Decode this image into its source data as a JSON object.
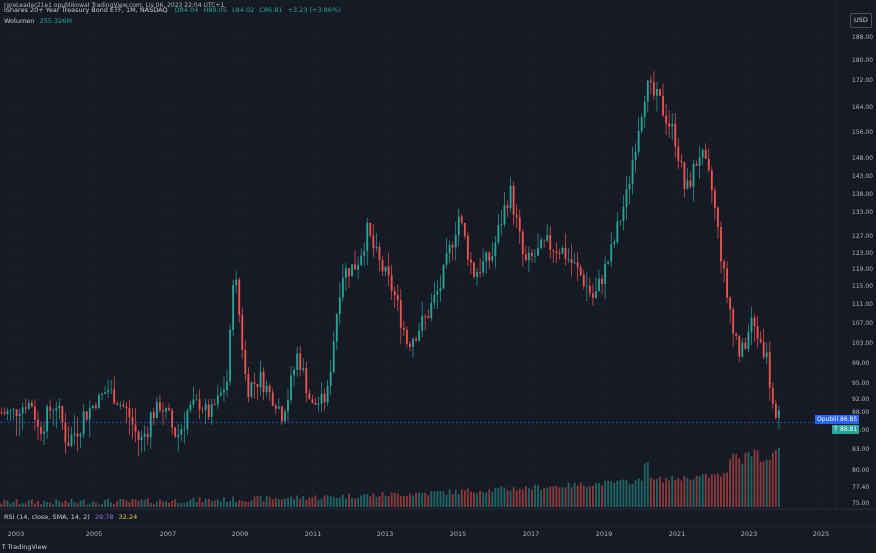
{
  "header": {
    "author_line": "rareLeader21e1 opublikował TradingView.com, Lis 06, 2023 22:04 UTC+1",
    "symbol": "iShares 20+ Year Treasury Bond ETF, 1M, NASDAQ",
    "o": "O84.04",
    "h": "H89.05",
    "l": "L84.02",
    "c": "C86.81",
    "chg": "+3.23 (+3.86%)",
    "volume_label": "Wolumen",
    "volume_value": "255.326M",
    "currency": "USD"
  },
  "rsi": {
    "label": "RSI (14, close, SMA, 14, 2)",
    "v1": "29.78",
    "v2": "32.24"
  },
  "footer": {
    "logo": "TradingView"
  },
  "tags": {
    "author": "Opublikuj",
    "author_value": "86.85",
    "symbol": "TLT",
    "symbol_value": "86.81"
  },
  "colors": {
    "up": "#26a69a",
    "down": "#ef5350",
    "bg": "#161a25",
    "grid": "#20242f",
    "text": "#b2b5be"
  },
  "chart_data": {
    "type": "candlestick",
    "title": "iShares 20+ Year Treasury Bond ETF, 1M, NASDAQ",
    "x_ticks": [
      "2003",
      "2005",
      "2007",
      "2009",
      "2011",
      "2013",
      "2015",
      "2017",
      "2019",
      "2021",
      "2023",
      "2025"
    ],
    "y_ticks": [
      75.0,
      77.4,
      80.0,
      83.0,
      86.0,
      88.0,
      92.0,
      95.0,
      99.0,
      103.0,
      107.0,
      111.0,
      115.0,
      119.0,
      123.0,
      127.0,
      133.0,
      138.0,
      143.0,
      148.0,
      156.0,
      164.0,
      172.0,
      180.0,
      188.0
    ],
    "ylim": [
      75,
      190
    ],
    "last_price": 86.81,
    "grid": true,
    "series_points": [
      {
        "t": 2002.9,
        "p": 88
      },
      {
        "t": 2003.4,
        "p": 91
      },
      {
        "t": 2003.6,
        "p": 86
      },
      {
        "t": 2004.1,
        "p": 90
      },
      {
        "t": 2004.4,
        "p": 84
      },
      {
        "t": 2004.9,
        "p": 88
      },
      {
        "t": 2005.5,
        "p": 94
      },
      {
        "t": 2005.9,
        "p": 90
      },
      {
        "t": 2006.4,
        "p": 84
      },
      {
        "t": 2006.9,
        "p": 90
      },
      {
        "t": 2007.4,
        "p": 85
      },
      {
        "t": 2007.9,
        "p": 91
      },
      {
        "t": 2008.3,
        "p": 88
      },
      {
        "t": 2008.8,
        "p": 96
      },
      {
        "t": 2008.95,
        "p": 120
      },
      {
        "t": 2009.3,
        "p": 94
      },
      {
        "t": 2009.7,
        "p": 96
      },
      {
        "t": 2010.3,
        "p": 88
      },
      {
        "t": 2010.7,
        "p": 101
      },
      {
        "t": 2011.1,
        "p": 90
      },
      {
        "t": 2011.5,
        "p": 92
      },
      {
        "t": 2011.9,
        "p": 118
      },
      {
        "t": 2012.3,
        "p": 120
      },
      {
        "t": 2012.6,
        "p": 128
      },
      {
        "t": 2012.9,
        "p": 121
      },
      {
        "t": 2013.3,
        "p": 114
      },
      {
        "t": 2013.7,
        "p": 103
      },
      {
        "t": 2014.2,
        "p": 108
      },
      {
        "t": 2014.6,
        "p": 115
      },
      {
        "t": 2015.1,
        "p": 132
      },
      {
        "t": 2015.5,
        "p": 118
      },
      {
        "t": 2016.0,
        "p": 122
      },
      {
        "t": 2016.5,
        "p": 139
      },
      {
        "t": 2016.9,
        "p": 120
      },
      {
        "t": 2017.5,
        "p": 125
      },
      {
        "t": 2017.9,
        "p": 124
      },
      {
        "t": 2018.4,
        "p": 118
      },
      {
        "t": 2018.8,
        "p": 112
      },
      {
        "t": 2019.3,
        "p": 124
      },
      {
        "t": 2019.7,
        "p": 138
      },
      {
        "t": 2020.2,
        "p": 170
      },
      {
        "t": 2020.6,
        "p": 165
      },
      {
        "t": 2021.0,
        "p": 155
      },
      {
        "t": 2021.3,
        "p": 138
      },
      {
        "t": 2021.7,
        "p": 150
      },
      {
        "t": 2022.0,
        "p": 140
      },
      {
        "t": 2022.4,
        "p": 114
      },
      {
        "t": 2022.8,
        "p": 100
      },
      {
        "t": 2023.1,
        "p": 107
      },
      {
        "t": 2023.5,
        "p": 101
      },
      {
        "t": 2023.8,
        "p": 84
      },
      {
        "t": 2023.85,
        "p": 86.81
      }
    ]
  }
}
